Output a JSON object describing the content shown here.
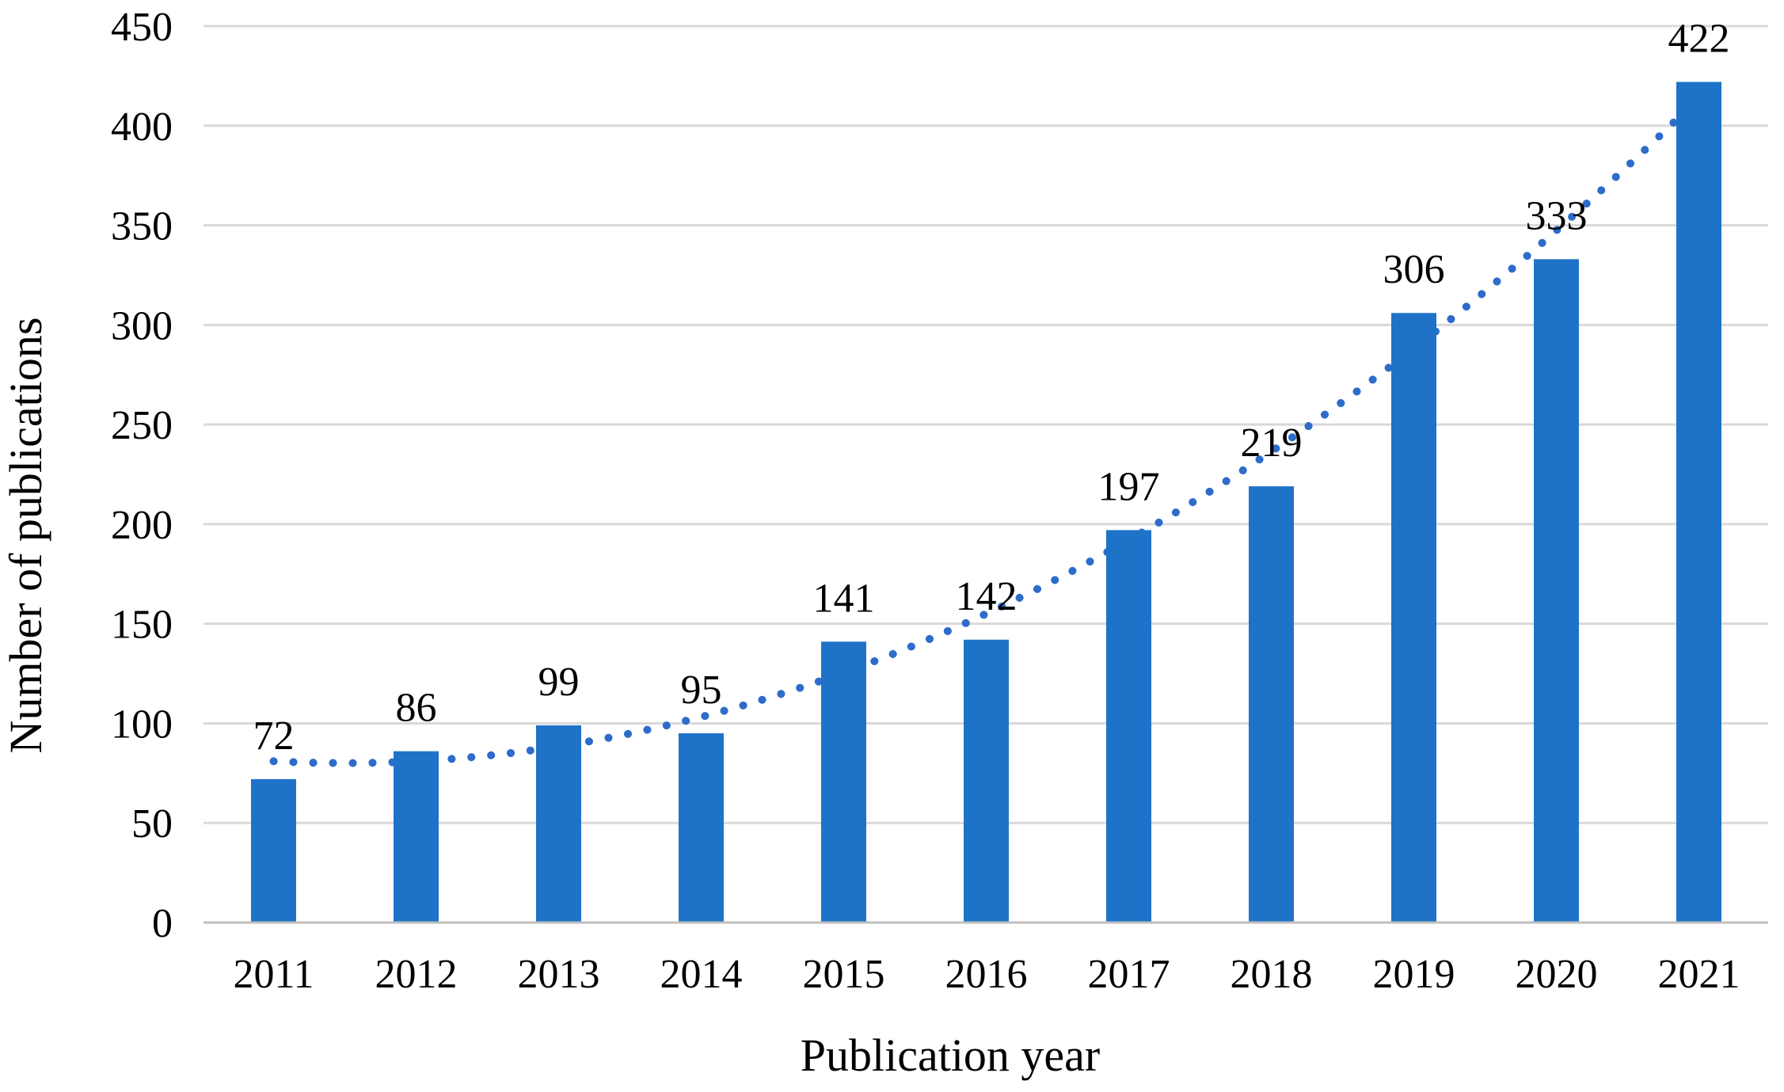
{
  "chart_data": {
    "type": "bar",
    "title": "",
    "xlabel": "Publication year",
    "ylabel": "Number of publications",
    "categories": [
      "2011",
      "2012",
      "2013",
      "2014",
      "2015",
      "2016",
      "2017",
      "2018",
      "2019",
      "2020",
      "2021"
    ],
    "series": [
      {
        "name": "Number of publications",
        "values": [
          72,
          86,
          99,
          95,
          141,
          142,
          197,
          219,
          306,
          333,
          422
        ]
      }
    ],
    "data_labels": [
      "72",
      "86",
      "99",
      "95",
      "141",
      "142",
      "197",
      "219",
      "306",
      "333",
      "422"
    ],
    "ylim": [
      0,
      450
    ],
    "ytick_step": 50,
    "ytick_labels": [
      "0",
      "50",
      "100",
      "150",
      "200",
      "250",
      "300",
      "350",
      "400",
      "450"
    ],
    "grid": true,
    "legend": "none",
    "trendline": {
      "type": "polynomial",
      "order": 2,
      "style": "dotted",
      "coefficients": {
        "a": 3.698,
        "b": -3.68,
        "c": 80.97
      },
      "t_range": [
        0,
        10
      ]
    },
    "colors": {
      "bar": "#1e73c8",
      "trendline": "#2d6cca",
      "gridline": "#d9d9d9",
      "axis_line": "#bfbfbf",
      "text": "#000000",
      "background": "#ffffff"
    }
  }
}
